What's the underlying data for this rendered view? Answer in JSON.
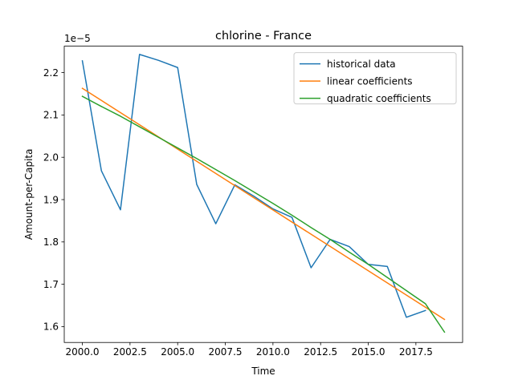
{
  "chart_data": {
    "type": "line",
    "title": "chlorine - France",
    "xlabel": "Time",
    "ylabel": "Amount-per-Capita",
    "y_offset_label": "1e−5",
    "xlim": [
      1999.05,
      2019.95
    ],
    "ylim": [
      1.5625,
      2.2625
    ],
    "x_ticks": [
      2000.0,
      2002.5,
      2005.0,
      2007.5,
      2010.0,
      2012.5,
      2015.0,
      2017.5
    ],
    "x_tick_labels": [
      "2000.0",
      "2002.5",
      "2005.0",
      "2007.5",
      "2010.0",
      "2012.5",
      "2015.0",
      "2017.5"
    ],
    "y_ticks": [
      1.6,
      1.7,
      1.8,
      1.9,
      2.0,
      2.1,
      2.2
    ],
    "y_tick_labels": [
      "1.6",
      "1.7",
      "1.8",
      "1.9",
      "2.0",
      "2.1",
      "2.2"
    ],
    "grid": false,
    "legend_position": "top-right",
    "series": [
      {
        "name": "historical data",
        "color": "#1f77b4",
        "x": [
          2000,
          2001,
          2002,
          2003,
          2004,
          2005,
          2006,
          2007,
          2008,
          2009,
          2010,
          2011,
          2012,
          2013,
          2014,
          2015,
          2016,
          2017,
          2018
        ],
        "y": [
          2.228,
          1.968,
          1.876,
          2.243,
          2.229,
          2.212,
          1.936,
          1.843,
          1.935,
          1.908,
          1.878,
          1.858,
          1.739,
          1.806,
          1.789,
          1.747,
          1.742,
          1.622,
          1.638
        ]
      },
      {
        "name": "linear coefficients",
        "color": "#ff7f0e",
        "x": [
          2000,
          2019
        ],
        "y": [
          2.163,
          1.617
        ]
      },
      {
        "name": "quadratic coefficients",
        "color": "#2ca02c",
        "x": [
          2000,
          2001,
          2002,
          2003,
          2004,
          2005,
          2006,
          2007,
          2008,
          2009,
          2010,
          2011,
          2012,
          2013,
          2014,
          2015,
          2016,
          2017,
          2018,
          2019
        ],
        "y": [
          2.144,
          2.12,
          2.097,
          2.072,
          2.047,
          2.022,
          1.997,
          1.971,
          1.945,
          1.918,
          1.891,
          1.863,
          1.834,
          1.806,
          1.776,
          1.747,
          1.716,
          1.685,
          1.654,
          1.587
        ]
      }
    ]
  }
}
